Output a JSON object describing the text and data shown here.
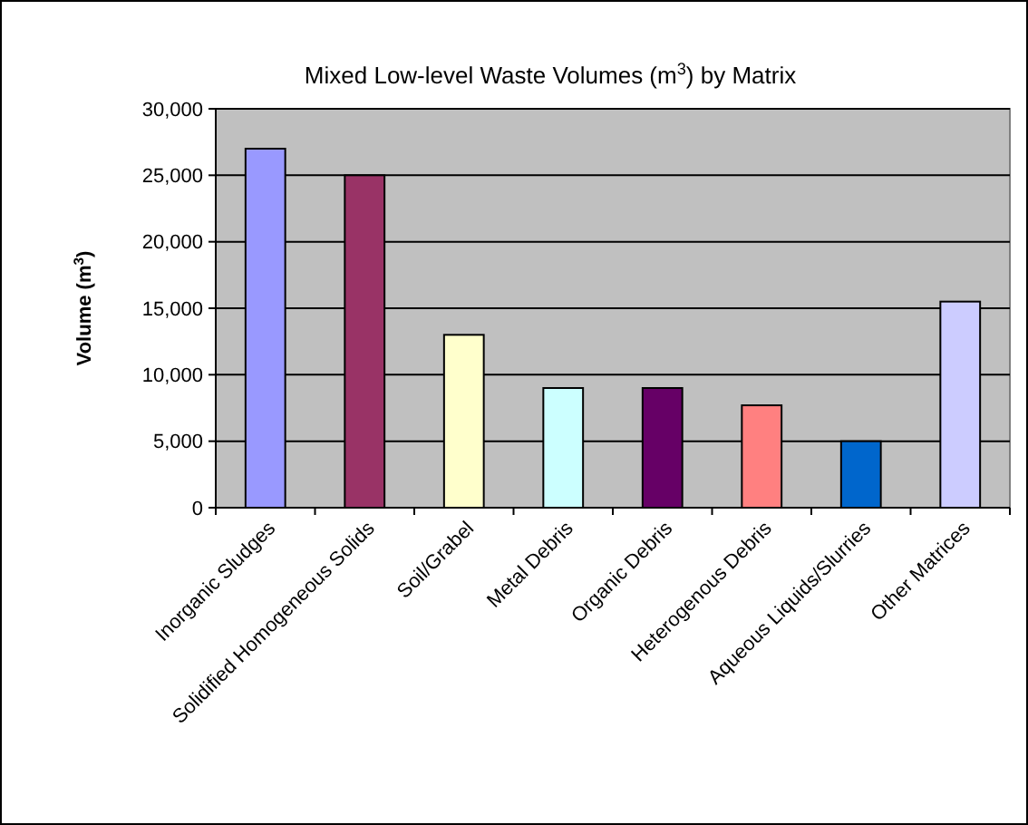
{
  "chart_data": {
    "type": "bar",
    "title": "Mixed Low-level Waste Volumes (m$^{3}$) by Matrix",
    "ylabel": "Volume (m$^{3}$)",
    "categories": [
      "Inorganic Sludges",
      "Solidified Homogeneous Solids",
      "Soil/Grabel",
      "Metal Debris",
      "Organic Debris",
      "Heterogenous Debris",
      "Aqueous Liquids/Slurries",
      "Other Matrices"
    ],
    "values": [
      27000,
      25000,
      13000,
      9000,
      9000,
      7700,
      5000,
      15500
    ],
    "colors": [
      "#9999ff",
      "#993366",
      "#ffffcc",
      "#ccffff",
      "#660066",
      "#ff8080",
      "#0066cc",
      "#ccccff"
    ],
    "ylim": [
      0,
      30000
    ],
    "yticks": [
      {
        "value": 0,
        "label": "0"
      },
      {
        "value": 5000,
        "label": "5,000"
      },
      {
        "value": 10000,
        "label": "10,000"
      },
      {
        "value": 15000,
        "label": "15,000"
      },
      {
        "value": 20000,
        "label": "20,000"
      },
      {
        "value": 25000,
        "label": "25,000"
      },
      {
        "value": 30000,
        "label": "30,000"
      }
    ],
    "grid": "y"
  }
}
